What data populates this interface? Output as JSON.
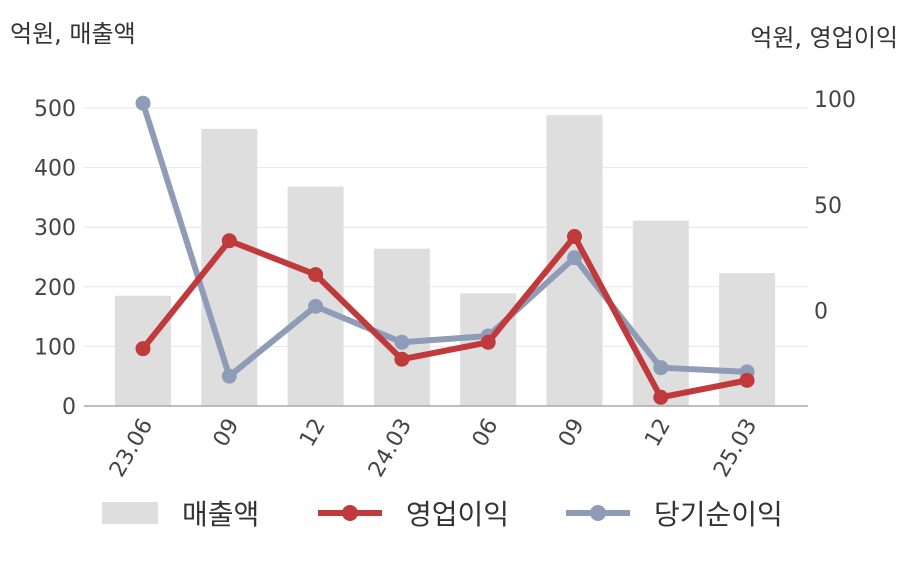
{
  "unit_left": "억원, 매출액",
  "unit_right": "억원, 영업이익",
  "chart_data": {
    "type": "bar+line",
    "categories": [
      "23.06",
      "09",
      "12",
      "24.03",
      "06",
      "09",
      "12",
      "25.03"
    ],
    "left_axis": {
      "ylim": [
        0,
        500
      ],
      "ticks": [
        "0",
        "100",
        "200",
        "300",
        "400",
        "500"
      ]
    },
    "right_axis": {
      "ylim": [
        -47,
        100
      ],
      "ticks": [
        "0",
        "50",
        "100"
      ]
    },
    "grid": "horizontal",
    "legend_position": "bottom",
    "series": [
      {
        "name": "매출액",
        "type": "bar",
        "axis": "left",
        "color": "#dedede",
        "values": [
          185,
          465,
          368,
          264,
          189,
          488,
          311,
          223
        ]
      },
      {
        "name": "영업이익",
        "type": "line",
        "axis": "right",
        "color": "#c0393b",
        "values": [
          -18,
          33,
          17,
          -23,
          -15,
          35,
          -41,
          -33
        ]
      },
      {
        "name": "당기순이익",
        "type": "line",
        "axis": "right",
        "color": "#8f9cb8",
        "values": [
          98,
          -31,
          2,
          -15,
          -12,
          25,
          -27,
          -29
        ]
      }
    ]
  }
}
